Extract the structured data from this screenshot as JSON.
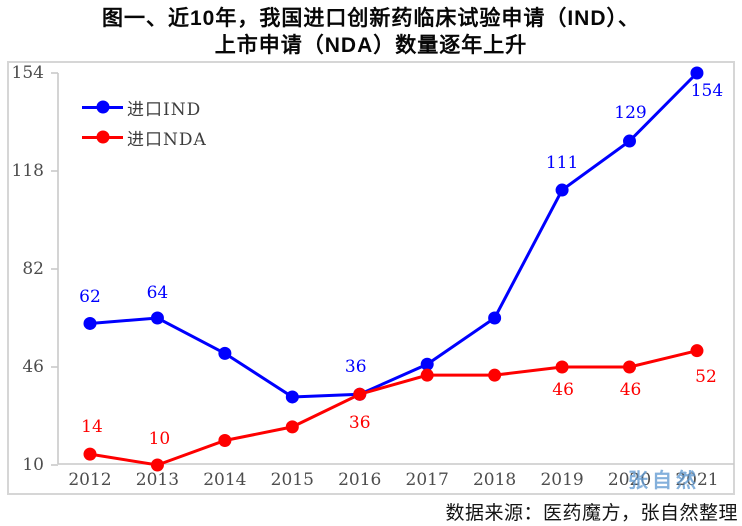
{
  "figure": {
    "title_line1": "图一、近10年，我国进口创新药临床试验申请（IND）、",
    "title_line2": "上市申请（NDA）数量逐年上升",
    "source": "数据来源：医药魔方，张自然整理",
    "watermark": "张自然"
  },
  "chart_data": {
    "type": "line",
    "title": "图一、近10年，我国进口创新药临床试验申请（IND）、上市申请（NDA）数量逐年上升",
    "categories": [
      "2012",
      "2013",
      "2014",
      "2015",
      "2016",
      "2017",
      "2018",
      "2019",
      "2020",
      "2021"
    ],
    "series": [
      {
        "name": "进口IND",
        "color": "#0000fe",
        "values": [
          62,
          64,
          51,
          35,
          36,
          47,
          64,
          111,
          129,
          154
        ]
      },
      {
        "name": "进口NDA",
        "color": "#fe0000",
        "values": [
          14,
          10,
          19,
          24,
          36,
          43,
          43,
          46,
          46,
          52
        ]
      }
    ],
    "label_indices": [
      0,
      1,
      4,
      7,
      8,
      9
    ],
    "y_ticks": [
      10,
      46,
      82,
      118,
      154
    ],
    "ylim": [
      10,
      154
    ],
    "xlabel": "",
    "ylabel": "",
    "grid": false,
    "legend_position": "top-left",
    "axis_color": "#c9c9c9",
    "tick_label_color": "#4d4d4d"
  }
}
